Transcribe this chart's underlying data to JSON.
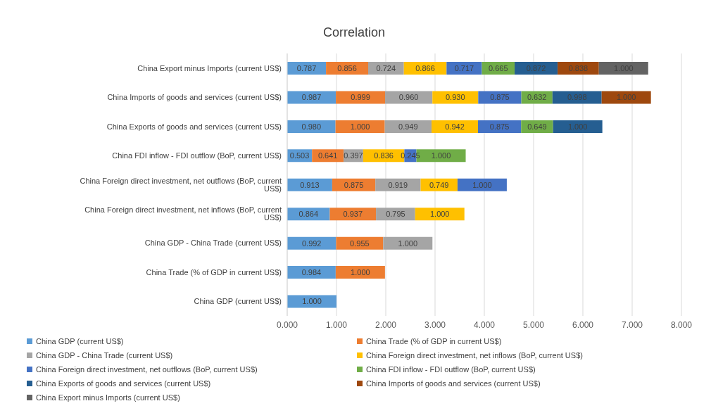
{
  "chart_data": {
    "type": "bar",
    "orientation": "horizontal",
    "stacked": true,
    "title": "Correlation",
    "categories": [
      "China Export minus Imports (current US$)",
      "China Imports of goods and services (current US$)",
      "China Exports of goods and services (current US$)",
      "China FDI inflow - FDI outflow (BoP, current US$)",
      "China Foreign direct investment, net outflows (BoP, current US$)",
      "China Foreign direct investment, net inflows (BoP, current US$)",
      "China GDP - China Trade (current US$)",
      "China Trade (% of GDP in current US$)",
      "China GDP (current US$)"
    ],
    "series": [
      {
        "name": "China GDP (current US$)",
        "color": "#5b9bd5",
        "values": [
          0.787,
          0.987,
          0.98,
          0.503,
          0.913,
          0.864,
          0.992,
          0.984,
          1.0
        ],
        "value_labels": [
          "0.787",
          "0.987",
          "0.980",
          "0.503",
          "0.913",
          "0.864",
          "0.992",
          "0.984",
          "1.000"
        ]
      },
      {
        "name": "China Trade (% of GDP in current US$)",
        "color": "#ed7d31",
        "values": [
          0.856,
          0.999,
          1.0,
          0.641,
          0.875,
          0.937,
          0.955,
          1.0,
          null
        ],
        "value_labels": [
          "0.856",
          "0.999",
          "1.000",
          "0.641",
          "0.875",
          "0.937",
          "0.955",
          "1.000",
          null
        ]
      },
      {
        "name": "China GDP - China Trade (current US$)",
        "color": "#a5a5a5",
        "values": [
          0.724,
          0.96,
          0.949,
          0.397,
          0.919,
          0.795,
          1.0,
          null,
          null
        ],
        "value_labels": [
          "0.724",
          "0.960",
          "0.949",
          "0.397",
          "0.919",
          "0.795",
          "1.000",
          null,
          null
        ]
      },
      {
        "name": "China Foreign direct investment, net inflows (BoP, current US$)",
        "color": "#ffc000",
        "values": [
          0.866,
          0.93,
          0.942,
          0.836,
          0.749,
          1.0,
          null,
          null,
          null
        ],
        "value_labels": [
          "0.866",
          "0.930",
          "0.942",
          "0.836",
          "0.749",
          "1.000",
          null,
          null,
          null
        ]
      },
      {
        "name": "China Foreign direct investment, net outflows (BoP, current US$)",
        "color": "#4472c4",
        "values": [
          0.717,
          0.875,
          0.875,
          0.245,
          1.0,
          null,
          null,
          null,
          null
        ],
        "value_labels": [
          "0.717",
          "0.875",
          "0.875",
          "0.245",
          "1.000",
          null,
          null,
          null,
          null
        ]
      },
      {
        "name": "China FDI inflow - FDI outflow (BoP, current US$)",
        "color": "#70ad47",
        "values": [
          0.665,
          0.632,
          0.649,
          1.0,
          null,
          null,
          null,
          null,
          null
        ],
        "value_labels": [
          "0.665",
          "0.632",
          "0.649",
          "1.000",
          null,
          null,
          null,
          null,
          null
        ]
      },
      {
        "name": "China Exports of goods and services (current US$)",
        "color": "#255e91",
        "values": [
          0.872,
          0.998,
          1.0,
          null,
          null,
          null,
          null,
          null,
          null
        ],
        "value_labels": [
          "0.872",
          "0.998",
          "1.000",
          null,
          null,
          null,
          null,
          null,
          null
        ]
      },
      {
        "name": "China Imports of goods and services (current US$)",
        "color": "#9e480e",
        "values": [
          0.838,
          1.0,
          null,
          null,
          null,
          null,
          null,
          null,
          null
        ],
        "value_labels": [
          "0.838",
          "1.000",
          null,
          null,
          null,
          null,
          null,
          null,
          null
        ]
      },
      {
        "name": "China Export minus Imports (current US$)",
        "color": "#636363",
        "values": [
          1.0,
          null,
          null,
          null,
          null,
          null,
          null,
          null,
          null
        ],
        "value_labels": [
          "1.000",
          null,
          null,
          null,
          null,
          null,
          null,
          null,
          null
        ]
      }
    ],
    "xlim": [
      0,
      8
    ],
    "xticks": [
      {
        "value": 0,
        "label": "0.000"
      },
      {
        "value": 1,
        "label": "1.000"
      },
      {
        "value": 2,
        "label": "2.000"
      },
      {
        "value": 3,
        "label": "3.000"
      },
      {
        "value": 4,
        "label": "4.000"
      },
      {
        "value": 5,
        "label": "5.000"
      },
      {
        "value": 6,
        "label": "6.000"
      },
      {
        "value": 7,
        "label": "7.000"
      },
      {
        "value": 8,
        "label": "8.000"
      }
    ],
    "grid": "x",
    "legend": "bottom"
  }
}
